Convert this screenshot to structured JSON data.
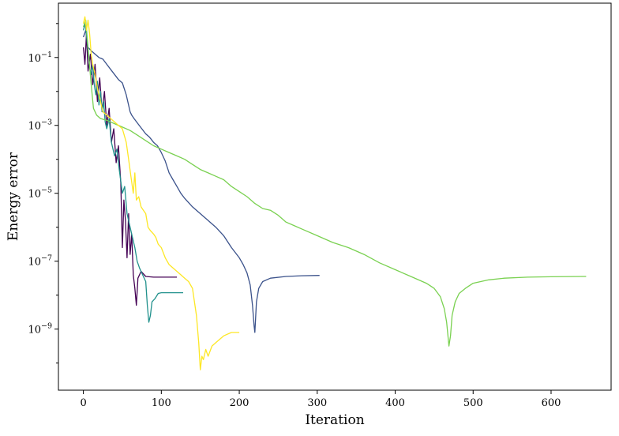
{
  "chart_data": {
    "type": "line",
    "title": "",
    "xlabel": "Iteration",
    "ylabel": "Energy error",
    "yscale": "log",
    "grid": false,
    "legend": "none",
    "xlim": [
      -32,
      677
    ],
    "ylim_log10": [
      -10.8,
      0.6
    ],
    "x_ticks": [
      {
        "value": 0,
        "label": "0"
      },
      {
        "value": 100,
        "label": "100"
      },
      {
        "value": 200,
        "label": "200"
      },
      {
        "value": 300,
        "label": "300"
      },
      {
        "value": 400,
        "label": "400"
      },
      {
        "value": 500,
        "label": "500"
      },
      {
        "value": 600,
        "label": "600"
      }
    ],
    "y_ticks": [
      {
        "exp": -1,
        "base": "10",
        "power": "−1"
      },
      {
        "exp": -3,
        "base": "10",
        "power": "−3"
      },
      {
        "exp": -5,
        "base": "10",
        "power": "−5"
      },
      {
        "exp": -7,
        "base": "10",
        "power": "−7"
      },
      {
        "exp": -9,
        "base": "10",
        "power": "−9"
      }
    ],
    "series": [
      {
        "color": "#440154",
        "points": [
          [
            0,
            -0.7
          ],
          [
            2,
            -1.2
          ],
          [
            4,
            -0.3
          ],
          [
            6,
            -1.4
          ],
          [
            9,
            -0.9
          ],
          [
            12,
            -1.8
          ],
          [
            15,
            -1.2
          ],
          [
            18,
            -2.3
          ],
          [
            21,
            -1.6
          ],
          [
            24,
            -2.6
          ],
          [
            27,
            -2.0
          ],
          [
            30,
            -3.0
          ],
          [
            33,
            -2.5
          ],
          [
            36,
            -3.5
          ],
          [
            39,
            -3.1
          ],
          [
            42,
            -4.1
          ],
          [
            45,
            -3.6
          ],
          [
            48,
            -4.7
          ],
          [
            50,
            -6.6
          ],
          [
            52,
            -5.2
          ],
          [
            54,
            -5.8
          ],
          [
            56,
            -6.9
          ],
          [
            58,
            -5.6
          ],
          [
            60,
            -6.8
          ],
          [
            62,
            -6.2
          ],
          [
            64,
            -7.4
          ],
          [
            66,
            -7.8
          ],
          [
            68,
            -8.3
          ],
          [
            70,
            -7.5
          ],
          [
            74,
            -7.3
          ],
          [
            80,
            -7.45
          ],
          [
            90,
            -7.47
          ],
          [
            100,
            -7.47
          ],
          [
            120,
            -7.47
          ]
        ]
      },
      {
        "color": "#3b528b",
        "points": [
          [
            0,
            -0.4
          ],
          [
            3,
            -0.2
          ],
          [
            6,
            -0.7
          ],
          [
            10,
            -0.8
          ],
          [
            15,
            -0.9
          ],
          [
            20,
            -1.0
          ],
          [
            25,
            -1.05
          ],
          [
            30,
            -1.2
          ],
          [
            35,
            -1.35
          ],
          [
            40,
            -1.5
          ],
          [
            45,
            -1.65
          ],
          [
            50,
            -1.75
          ],
          [
            55,
            -2.1
          ],
          [
            60,
            -2.6
          ],
          [
            62,
            -2.7
          ],
          [
            65,
            -2.8
          ],
          [
            70,
            -2.95
          ],
          [
            75,
            -3.1
          ],
          [
            80,
            -3.25
          ],
          [
            85,
            -3.35
          ],
          [
            90,
            -3.5
          ],
          [
            95,
            -3.6
          ],
          [
            100,
            -3.8
          ],
          [
            105,
            -4.05
          ],
          [
            110,
            -4.4
          ],
          [
            115,
            -4.6
          ],
          [
            120,
            -4.8
          ],
          [
            125,
            -5.0
          ],
          [
            130,
            -5.15
          ],
          [
            140,
            -5.4
          ],
          [
            150,
            -5.6
          ],
          [
            160,
            -5.8
          ],
          [
            170,
            -6.0
          ],
          [
            180,
            -6.25
          ],
          [
            190,
            -6.6
          ],
          [
            200,
            -6.9
          ],
          [
            205,
            -7.1
          ],
          [
            210,
            -7.35
          ],
          [
            214,
            -7.7
          ],
          [
            217,
            -8.3
          ],
          [
            219,
            -8.9
          ],
          [
            220,
            -9.1
          ],
          [
            222,
            -8.2
          ],
          [
            225,
            -7.8
          ],
          [
            230,
            -7.6
          ],
          [
            240,
            -7.5
          ],
          [
            260,
            -7.45
          ],
          [
            280,
            -7.43
          ],
          [
            303,
            -7.42
          ]
        ]
      },
      {
        "color": "#21918c",
        "points": [
          [
            0,
            -0.2
          ],
          [
            2,
            0.0
          ],
          [
            4,
            -0.3
          ],
          [
            6,
            -0.8
          ],
          [
            8,
            -1.3
          ],
          [
            10,
            -1.5
          ],
          [
            12,
            -1.2
          ],
          [
            14,
            -1.8
          ],
          [
            16,
            -2.1
          ],
          [
            18,
            -1.7
          ],
          [
            20,
            -2.4
          ],
          [
            22,
            -2.0
          ],
          [
            24,
            -2.6
          ],
          [
            26,
            -2.3
          ],
          [
            28,
            -2.9
          ],
          [
            30,
            -3.1
          ],
          [
            33,
            -2.8
          ],
          [
            36,
            -3.5
          ],
          [
            40,
            -3.9
          ],
          [
            43,
            -3.7
          ],
          [
            46,
            -4.3
          ],
          [
            50,
            -5.0
          ],
          [
            53,
            -4.8
          ],
          [
            56,
            -5.6
          ],
          [
            60,
            -6.0
          ],
          [
            63,
            -6.3
          ],
          [
            66,
            -6.6
          ],
          [
            69,
            -7.0
          ],
          [
            72,
            -7.2
          ],
          [
            76,
            -7.4
          ],
          [
            80,
            -7.6
          ],
          [
            82,
            -8.3
          ],
          [
            84,
            -8.8
          ],
          [
            86,
            -8.6
          ],
          [
            88,
            -8.2
          ],
          [
            92,
            -8.1
          ],
          [
            96,
            -7.95
          ],
          [
            100,
            -7.93
          ],
          [
            115,
            -7.93
          ],
          [
            128,
            -7.93
          ]
        ]
      },
      {
        "color": "#7ad151",
        "points": [
          [
            0,
            -0.1
          ],
          [
            3,
            0.1
          ],
          [
            6,
            -0.7
          ],
          [
            10,
            -1.8
          ],
          [
            13,
            -2.5
          ],
          [
            17,
            -2.7
          ],
          [
            22,
            -2.8
          ],
          [
            30,
            -2.85
          ],
          [
            40,
            -2.95
          ],
          [
            50,
            -3.05
          ],
          [
            60,
            -3.15
          ],
          [
            70,
            -3.3
          ],
          [
            80,
            -3.45
          ],
          [
            90,
            -3.6
          ],
          [
            100,
            -3.7
          ],
          [
            110,
            -3.8
          ],
          [
            120,
            -3.9
          ],
          [
            130,
            -4.0
          ],
          [
            140,
            -4.15
          ],
          [
            150,
            -4.3
          ],
          [
            160,
            -4.4
          ],
          [
            170,
            -4.5
          ],
          [
            180,
            -4.6
          ],
          [
            190,
            -4.8
          ],
          [
            200,
            -4.95
          ],
          [
            210,
            -5.1
          ],
          [
            220,
            -5.3
          ],
          [
            230,
            -5.45
          ],
          [
            240,
            -5.5
          ],
          [
            250,
            -5.65
          ],
          [
            260,
            -5.85
          ],
          [
            270,
            -5.95
          ],
          [
            280,
            -6.05
          ],
          [
            300,
            -6.25
          ],
          [
            320,
            -6.45
          ],
          [
            340,
            -6.6
          ],
          [
            360,
            -6.8
          ],
          [
            380,
            -7.05
          ],
          [
            400,
            -7.25
          ],
          [
            420,
            -7.45
          ],
          [
            440,
            -7.65
          ],
          [
            450,
            -7.8
          ],
          [
            458,
            -8.05
          ],
          [
            463,
            -8.4
          ],
          [
            466,
            -8.8
          ],
          [
            469,
            -9.5
          ],
          [
            471,
            -9.2
          ],
          [
            473,
            -8.6
          ],
          [
            477,
            -8.2
          ],
          [
            482,
            -7.95
          ],
          [
            490,
            -7.8
          ],
          [
            500,
            -7.65
          ],
          [
            520,
            -7.55
          ],
          [
            540,
            -7.5
          ],
          [
            570,
            -7.47
          ],
          [
            600,
            -7.46
          ],
          [
            645,
            -7.45
          ]
        ]
      },
      {
        "color": "#fde725",
        "points": [
          [
            0,
            0.0
          ],
          [
            2,
            0.2
          ],
          [
            4,
            -0.2
          ],
          [
            6,
            0.1
          ],
          [
            8,
            -0.3
          ],
          [
            10,
            -0.9
          ],
          [
            12,
            -1.2
          ],
          [
            15,
            -1.5
          ],
          [
            18,
            -1.9
          ],
          [
            21,
            -2.2
          ],
          [
            25,
            -2.6
          ],
          [
            30,
            -2.7
          ],
          [
            35,
            -2.8
          ],
          [
            40,
            -2.9
          ],
          [
            45,
            -3.0
          ],
          [
            50,
            -3.1
          ],
          [
            55,
            -3.5
          ],
          [
            58,
            -4.0
          ],
          [
            61,
            -4.5
          ],
          [
            64,
            -5.0
          ],
          [
            66,
            -4.4
          ],
          [
            68,
            -5.2
          ],
          [
            71,
            -5.1
          ],
          [
            74,
            -5.4
          ],
          [
            77,
            -5.5
          ],
          [
            80,
            -5.6
          ],
          [
            83,
            -6.0
          ],
          [
            86,
            -6.1
          ],
          [
            90,
            -6.2
          ],
          [
            93,
            -6.3
          ],
          [
            96,
            -6.5
          ],
          [
            100,
            -6.6
          ],
          [
            105,
            -6.9
          ],
          [
            110,
            -7.1
          ],
          [
            115,
            -7.2
          ],
          [
            120,
            -7.3
          ],
          [
            125,
            -7.4
          ],
          [
            130,
            -7.5
          ],
          [
            135,
            -7.6
          ],
          [
            140,
            -7.8
          ],
          [
            145,
            -8.6
          ],
          [
            148,
            -9.4
          ],
          [
            150,
            -10.2
          ],
          [
            152,
            -9.8
          ],
          [
            154,
            -9.9
          ],
          [
            157,
            -9.6
          ],
          [
            160,
            -9.8
          ],
          [
            165,
            -9.5
          ],
          [
            170,
            -9.4
          ],
          [
            180,
            -9.2
          ],
          [
            190,
            -9.1
          ],
          [
            200,
            -9.1
          ]
        ]
      }
    ]
  }
}
